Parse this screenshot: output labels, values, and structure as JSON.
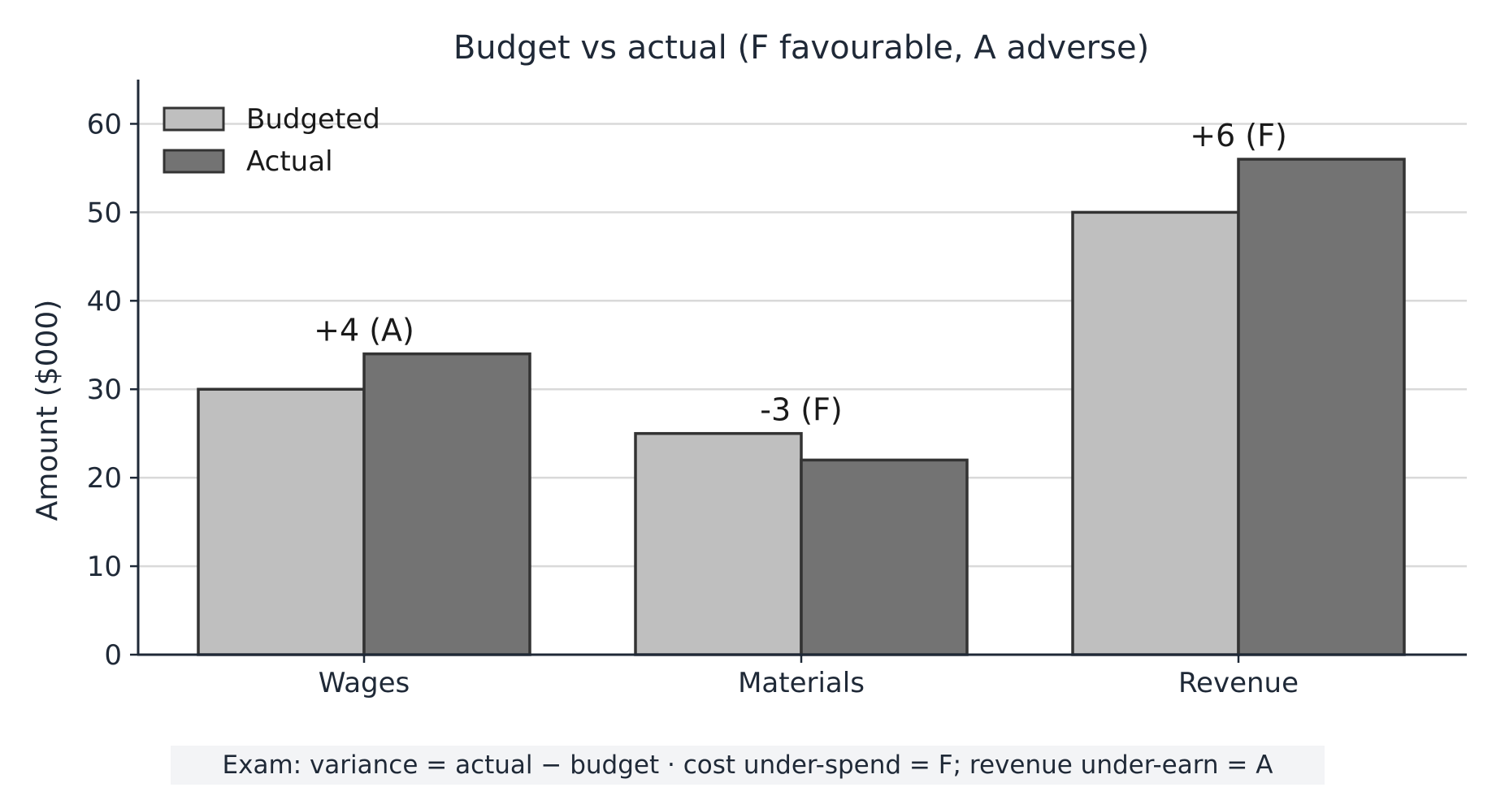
{
  "chart_data": {
    "type": "bar",
    "title": "Budget vs actual  (F favourable, A adverse)",
    "xlabel": "",
    "ylabel": "Amount ($000)",
    "categories": [
      "Wages",
      "Materials",
      "Revenue"
    ],
    "series": [
      {
        "name": "Budgeted",
        "values": [
          30,
          25,
          50
        ],
        "color": "#bfbfbf"
      },
      {
        "name": "Actual",
        "values": [
          34,
          22,
          56
        ],
        "color": "#737373"
      }
    ],
    "annotations": [
      "+4 (A)",
      "-3 (F)",
      "+6 (F)"
    ],
    "ylim": [
      0,
      65
    ],
    "yticks": [
      0,
      10,
      20,
      30,
      40,
      50,
      60
    ],
    "grid": true,
    "legend_position": "top-left",
    "colors": {
      "text": "#1f2937",
      "bar_edge": "#333333",
      "grid": "#d9d9d9",
      "axis": "#1f2937"
    }
  },
  "footnote": "Exam: variance = actual − budget  ·  cost under-spend = F; revenue under-earn = A"
}
